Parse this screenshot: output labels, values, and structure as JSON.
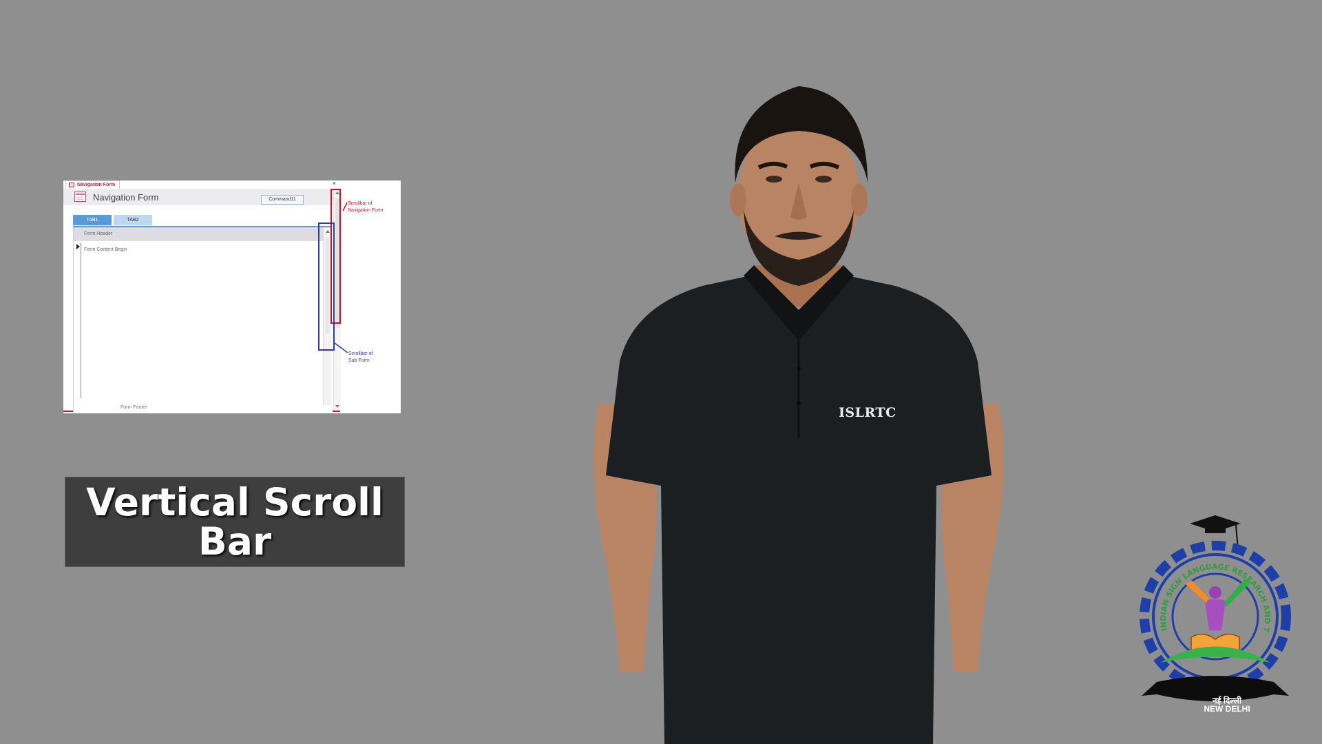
{
  "screenshot": {
    "doc_tab_title": "Navigation Form",
    "close_glyph": "×",
    "form_title": "Navigation Form",
    "command_button_label": "Command11",
    "tabs": [
      {
        "label": "TAB1",
        "active": true
      },
      {
        "label": "TAB2",
        "active": false
      }
    ],
    "subform_header_label": "Form Header",
    "subform_content_label": "Form Content Begin",
    "subform_footer_label": "Form Footer",
    "annotations": {
      "nav_scrollbar": {
        "line1": "Scrollbar of",
        "line2": "Navigation Form",
        "color": "#c8102e"
      },
      "subform_scrollbar": {
        "line1": "Scrollbar of",
        "line2": "Sub Form",
        "color": "#2e3aa6"
      }
    }
  },
  "caption": {
    "line1": "Vertical Scroll",
    "line2": "Bar"
  },
  "presenter": {
    "shirt_text": "ISLRTC"
  },
  "logo": {
    "city_line1": "नई दिल्ली",
    "city_line2": "NEW DELHI",
    "ring_text": "INDIAN SIGN LANGUAGE RESEARCH AND TRAINING CENTRE"
  },
  "colors": {
    "background": "#8f8f8f",
    "caption_bg": "#3e3e3e",
    "tab_active": "#5b9bd5",
    "tab_inactive": "#bdd7ee",
    "logo_gear": "#1f3fa8"
  }
}
